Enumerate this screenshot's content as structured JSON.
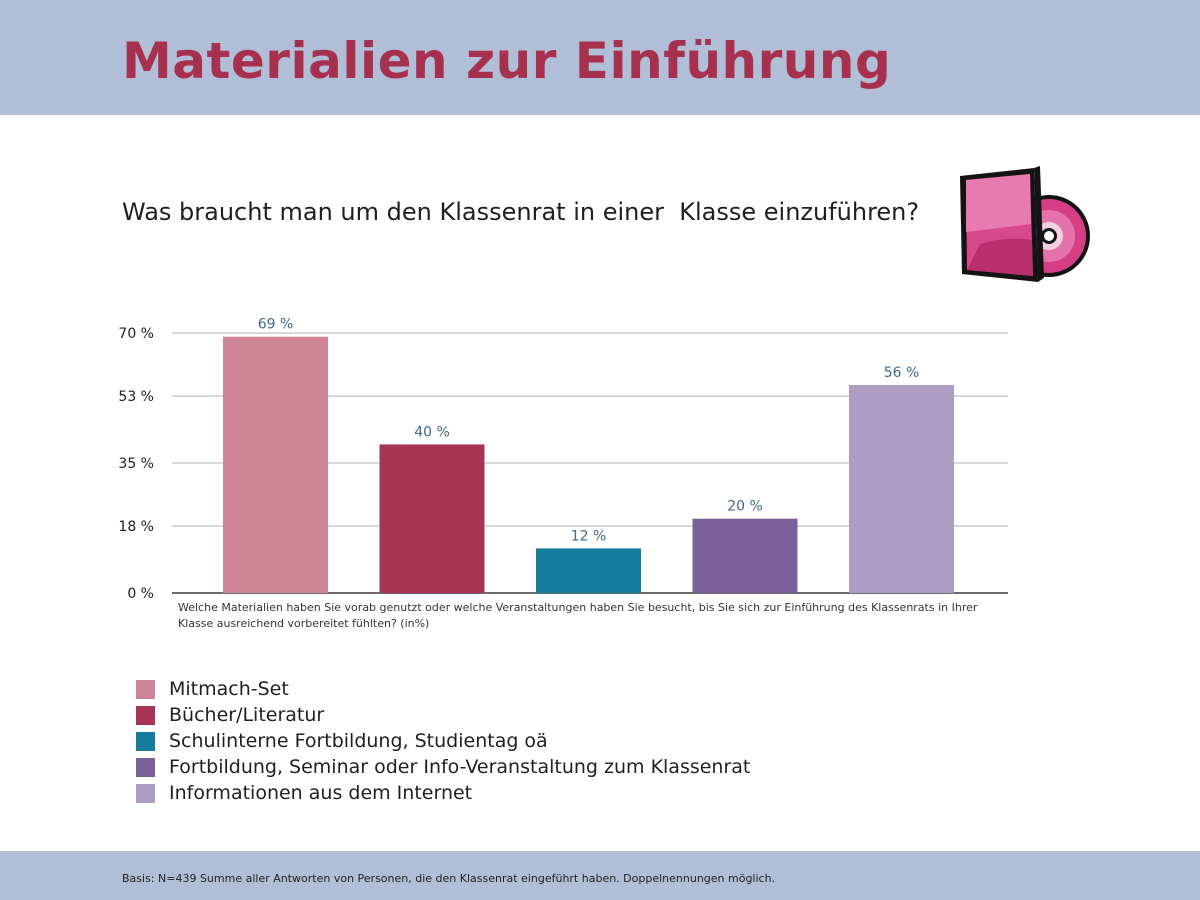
{
  "header": {
    "title": "Materialien zur Einführung"
  },
  "question": "Was braucht man um den Klassenrat in einer  Klasse einzuführen?",
  "icon": "cd-case-icon",
  "chart_data": {
    "type": "bar",
    "categories": [
      "Mitmach-Set",
      "Bücher/Literatur",
      "Schulinterne Fortbildung, Studientag oä",
      "Fortbildung, Seminar oder Info-Veranstaltung zum Klassenrat",
      "Informationen aus dem Internet"
    ],
    "values": [
      69,
      40,
      12,
      20,
      56
    ],
    "value_labels": [
      "69 %",
      "40 %",
      "12 %",
      "20 %",
      "56 %"
    ],
    "colors": [
      "#cd8596",
      "#a83554",
      "#167c9e",
      "#7b5f98",
      "#ae9cc3"
    ],
    "y_ticks": [
      0,
      18,
      35,
      53,
      70
    ],
    "y_tick_labels": [
      "0 %",
      "18 %",
      "35 %",
      "53 %",
      "70 %"
    ],
    "ylim": [
      0,
      70
    ],
    "grid": true,
    "legend_position": "bottom-left",
    "xlabel": "Welche Materialien haben Sie vorab genutzt oder welche Veranstaltungen haben Sie besucht, bis Sie sich zur Einführung des Klassenrats in Ihrer Klasse ausreichend vorbereitet fühlten? (in%)",
    "value_label_color": "#3d6b8a"
  },
  "legend": {
    "items": [
      {
        "label": "Mitmach-Set",
        "color": "#cd8596"
      },
      {
        "label": "Bücher/Literatur",
        "color": "#a83554"
      },
      {
        "label": "Schulinterne Fortbildung, Studientag oä",
        "color": "#167c9e"
      },
      {
        "label": "Fortbildung, Seminar oder Info-Veranstaltung zum Klassenrat",
        "color": "#7b5f98"
      },
      {
        "label": "Informationen aus dem Internet",
        "color": "#ae9cc3"
      }
    ]
  },
  "footer": {
    "note": "Basis: N=439 Summe aller Antworten von Personen, die den Klassenrat eingeführt haben. Doppelnennungen möglich."
  },
  "colors": {
    "band": "#b0bfd7",
    "title": "#a8304f"
  }
}
